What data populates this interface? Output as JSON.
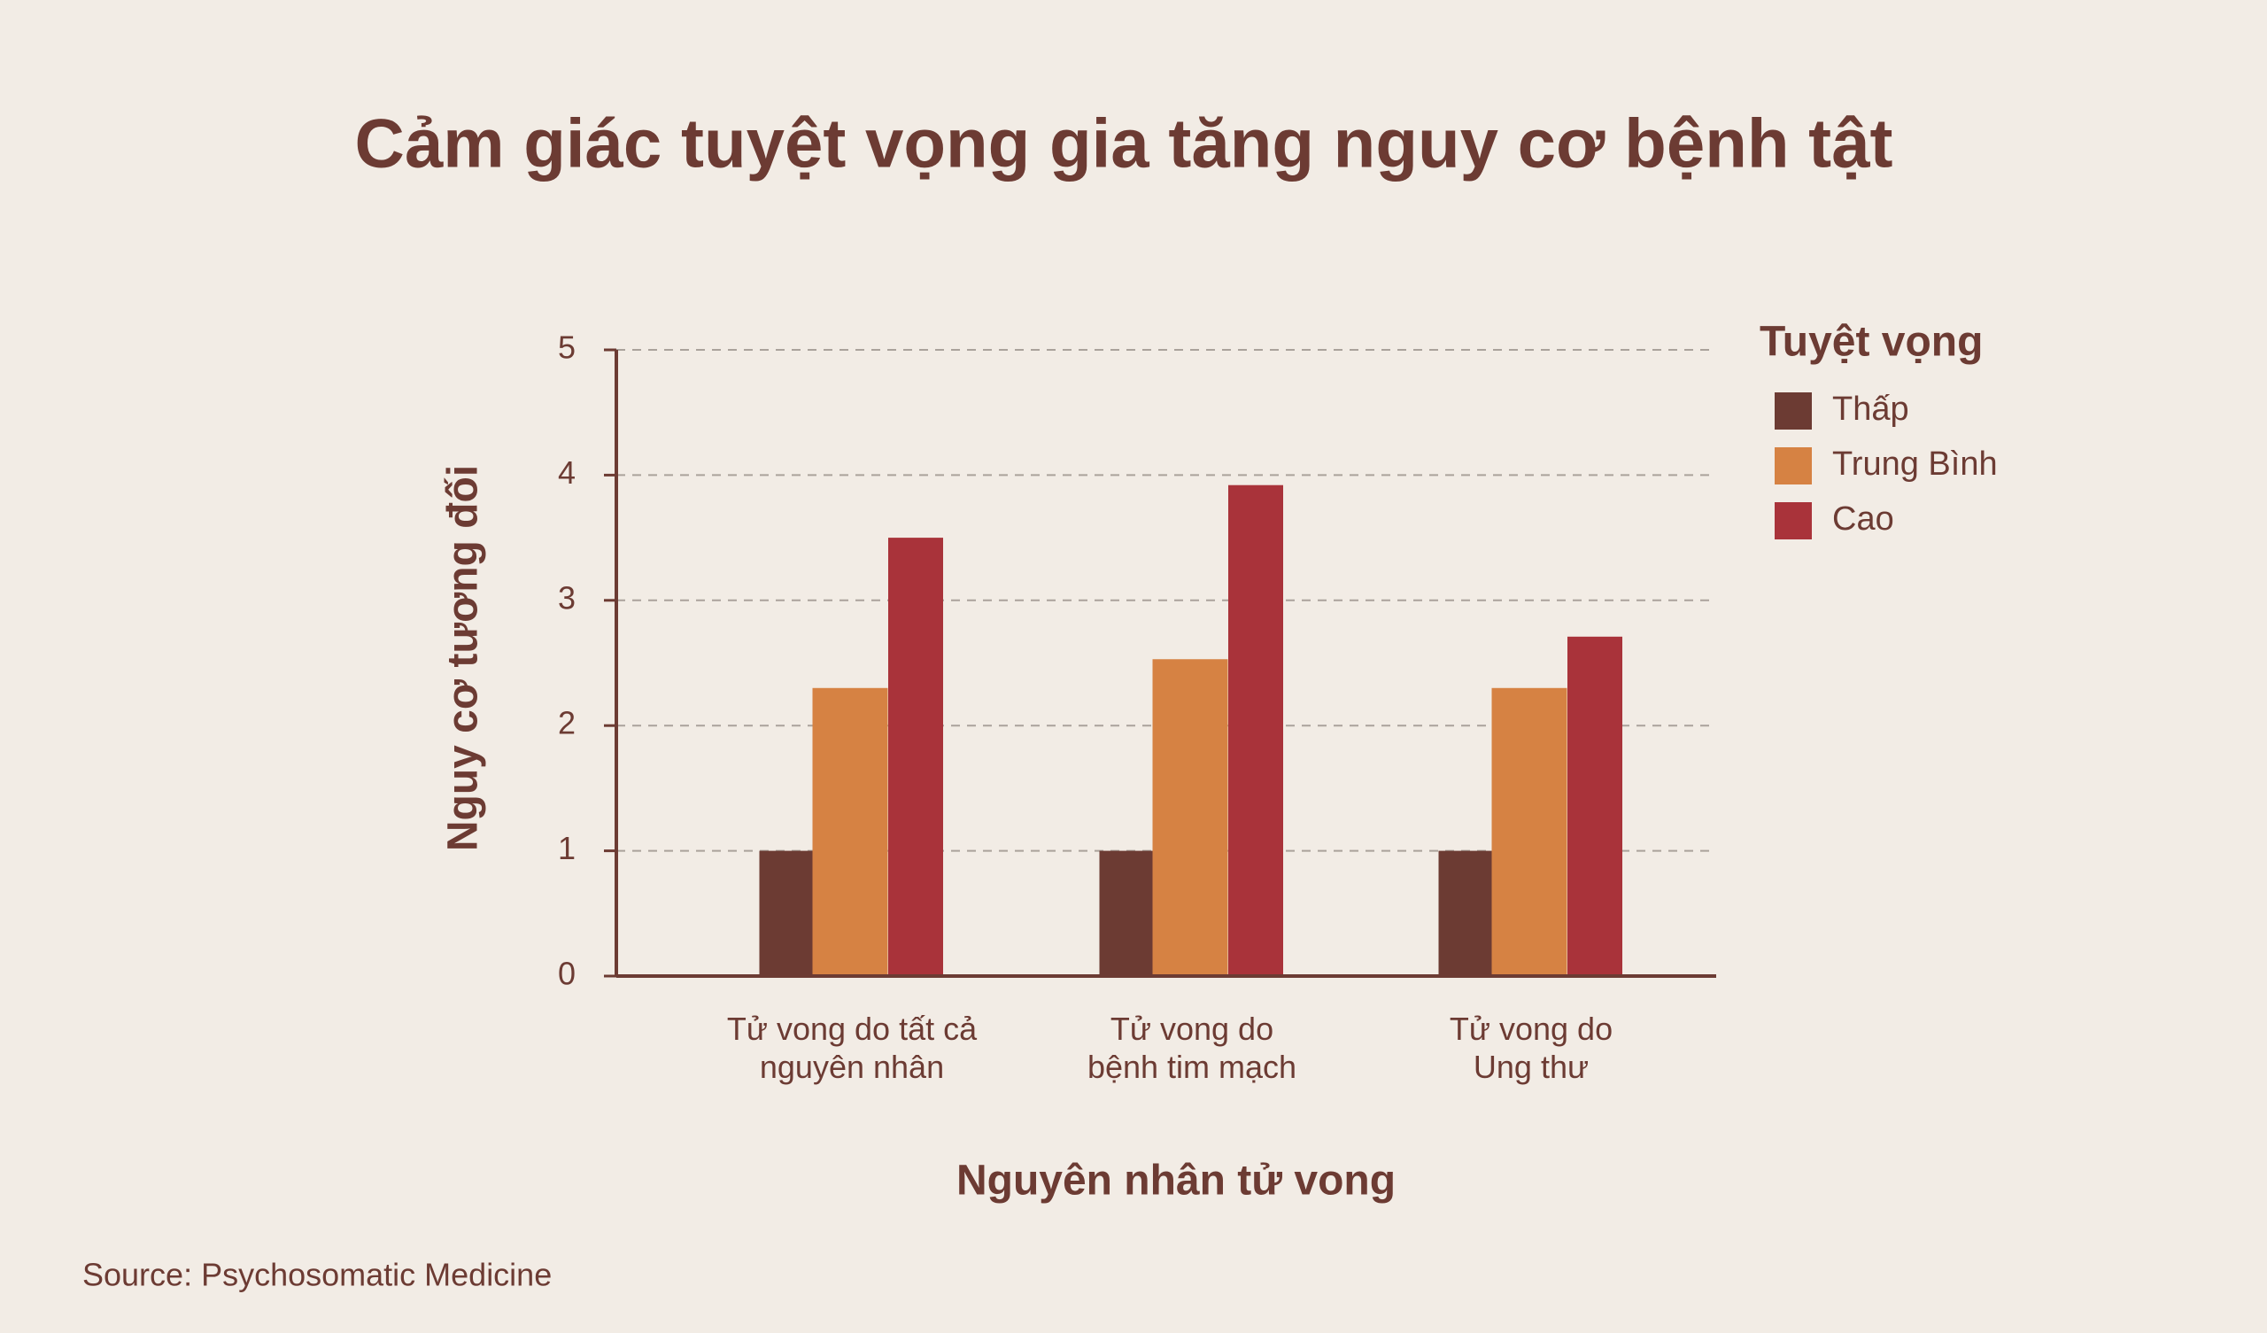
{
  "chart_data": {
    "type": "bar",
    "title": "Cảm giác tuyệt vọng gia tăng nguy cơ bệnh tật",
    "x_label": "Nguyên nhân tử vong",
    "y_label": "Nguy cơ tương đối",
    "legend_title": "Tuyệt vọng",
    "source": "Source: Psychosomatic Medicine",
    "categories": [
      "Tử vong do tất cả\nnguyên nhân",
      "Tử vong do\nbệnh tim mạch",
      "Tử vong do\nUng thư"
    ],
    "series": [
      {
        "name": "Thấp",
        "color": "#6c3b33",
        "values": [
          1,
          1,
          1
        ]
      },
      {
        "name": "Trung Bình",
        "color": "#d68243",
        "values": [
          2.3,
          2.53,
          2.3
        ]
      },
      {
        "name": "Cao",
        "color": "#a9333a",
        "values": [
          3.5,
          3.92,
          2.71
        ]
      }
    ],
    "ylim": [
      0,
      5
    ],
    "yticks": [
      0,
      1,
      2,
      3,
      4,
      5
    ],
    "grid": true,
    "legend": "right"
  }
}
